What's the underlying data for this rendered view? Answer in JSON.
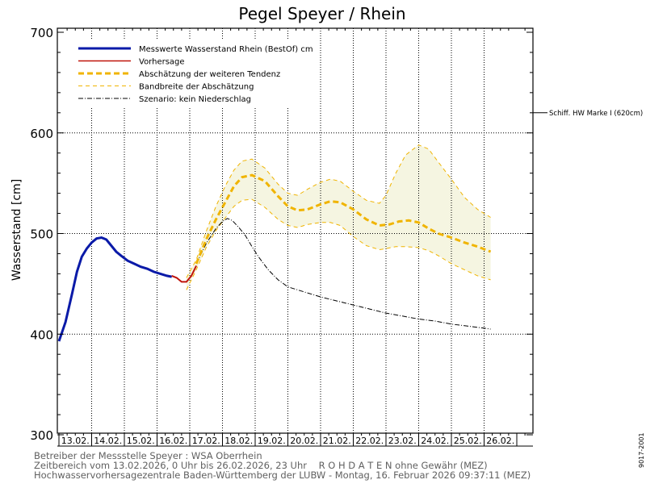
{
  "chart_data": {
    "type": "line",
    "title": "Pegel Speyer / Rhein",
    "ylabel": "Wasserstand [cm]",
    "ylim": [
      300,
      700
    ],
    "yticks": [
      300,
      400,
      500,
      600,
      700
    ],
    "x_categories": [
      "13.02.",
      "14.02.",
      "15.02.",
      "16.02.",
      "17.02.",
      "18.02.",
      "19.02.",
      "20.02.",
      "21.02.",
      "22.02.",
      "23.02.",
      "24.02.",
      "25.02.",
      "26.02."
    ],
    "x_unit": "days since 13.02.2026 00:00",
    "grid": true,
    "legend_position": "top-left",
    "legend": [
      {
        "label": "Messwerte Wasserstand Rhein (BestOf)  cm",
        "color": "#0a1aa8",
        "style": "solid-thick"
      },
      {
        "label": "Vorhersage",
        "color": "#c0140a",
        "style": "solid"
      },
      {
        "label": "Abschätzung der weiteren Tendenz",
        "color": "#f0b400",
        "style": "dashed-thick"
      },
      {
        "label": "Bandbreite der Abschätzung",
        "color": "#f0b400",
        "style": "dashed-thin"
      },
      {
        "label": "Szenario: kein Niederschlag",
        "color": "#000000",
        "style": "dashdot"
      }
    ],
    "reference_line": {
      "label": "Schiff. HW Marke I (620cm)",
      "value": 620
    },
    "series": [
      {
        "name": "Messwerte Wasserstand Rhein (BestOf)  cm",
        "x": [
          0.0,
          0.2,
          0.4,
          0.55,
          0.7,
          0.85,
          1.0,
          1.15,
          1.3,
          1.45,
          1.6,
          1.75,
          1.9,
          2.1,
          2.3,
          2.5,
          2.7,
          2.9,
          3.1,
          3.3,
          3.45
        ],
        "y": [
          393,
          412,
          440,
          462,
          477,
          485,
          491,
          495,
          496,
          494,
          488,
          482,
          478,
          473,
          470,
          467,
          465,
          462,
          460,
          458,
          457
        ]
      },
      {
        "name": "Vorhersage",
        "x": [
          3.45,
          3.6,
          3.75,
          3.9,
          4.05,
          4.2
        ],
        "y": [
          458,
          456,
          452,
          452,
          458,
          468
        ]
      },
      {
        "name": "Abschätzung der weiteren Tendenz",
        "x": [
          4.2,
          4.5,
          4.8,
          5.1,
          5.35,
          5.6,
          5.9,
          6.3,
          6.7,
          7.0,
          7.3,
          7.6,
          8.0,
          8.3,
          8.6,
          9.0,
          9.4,
          9.8,
          10.1,
          10.4,
          10.7,
          11.0,
          11.3,
          11.6,
          12.0,
          12.4,
          12.8,
          13.2
        ],
        "y": [
          470,
          494,
          514,
          532,
          547,
          556,
          558,
          552,
          537,
          527,
          523,
          524,
          529,
          532,
          531,
          524,
          514,
          508,
          509,
          512,
          513,
          511,
          505,
          500,
          496,
          491,
          487,
          482
        ]
      },
      {
        "name": "Bandbreite der Abschätzung (oben)",
        "x": [
          3.9,
          4.2,
          4.5,
          4.8,
          5.1,
          5.35,
          5.6,
          5.9,
          6.3,
          6.7,
          7.0,
          7.3,
          7.6,
          8.0,
          8.3,
          8.6,
          9.0,
          9.4,
          9.8,
          10.0,
          10.3,
          10.6,
          11.0,
          11.3,
          11.6,
          12.0,
          12.4,
          12.8,
          13.2
        ],
        "y": [
          456,
          474,
          502,
          527,
          548,
          563,
          572,
          574,
          565,
          549,
          540,
          538,
          544,
          551,
          554,
          552,
          542,
          533,
          530,
          538,
          560,
          578,
          588,
          584,
          571,
          554,
          536,
          524,
          516
        ]
      },
      {
        "name": "Bandbreite der Abschätzung (unten)",
        "x": [
          3.9,
          4.2,
          4.5,
          4.8,
          5.1,
          5.35,
          5.6,
          5.9,
          6.3,
          6.7,
          7.0,
          7.3,
          7.6,
          8.0,
          8.3,
          8.6,
          9.0,
          9.4,
          9.8,
          10.0,
          10.3,
          10.6,
          11.0,
          11.3,
          11.6,
          12.0,
          12.4,
          12.8,
          13.2
        ],
        "y": [
          444,
          464,
          486,
          503,
          516,
          527,
          533,
          534,
          526,
          514,
          508,
          506,
          509,
          511,
          511,
          508,
          497,
          488,
          484,
          485,
          487,
          487,
          486,
          483,
          478,
          470,
          464,
          458,
          454
        ]
      },
      {
        "name": "Szenario: kein Niederschlag",
        "x": [
          4.2,
          4.5,
          4.8,
          5.0,
          5.15,
          5.3,
          5.5,
          5.7,
          5.9,
          6.1,
          6.4,
          6.7,
          7.0,
          7.5,
          8.0,
          8.5,
          9.0,
          9.5,
          10.0,
          10.5,
          11.0,
          11.5,
          12.0,
          12.5,
          13.0,
          13.2
        ],
        "y": [
          470,
          490,
          505,
          512,
          515,
          513,
          506,
          498,
          487,
          477,
          464,
          454,
          447,
          442,
          437,
          433,
          429,
          425,
          421,
          418,
          415,
          413,
          410,
          408,
          406,
          405
        ]
      }
    ]
  },
  "footer": {
    "line1": "Betreiber der Messstelle Speyer : WSA Oberrhein",
    "line2": "Zeitbereich vom 13.02.2026, 0 Uhr bis 26.02.2026, 23 Uhr    R O H D A T E N ohne Gewähr (MEZ)",
    "line3": "Hochwasservorhersagezentrale Baden-Württemberg der LUBW - Montag, 16. Februar 2026 09:37:11 (MEZ)"
  },
  "side_id": "9017-2001"
}
